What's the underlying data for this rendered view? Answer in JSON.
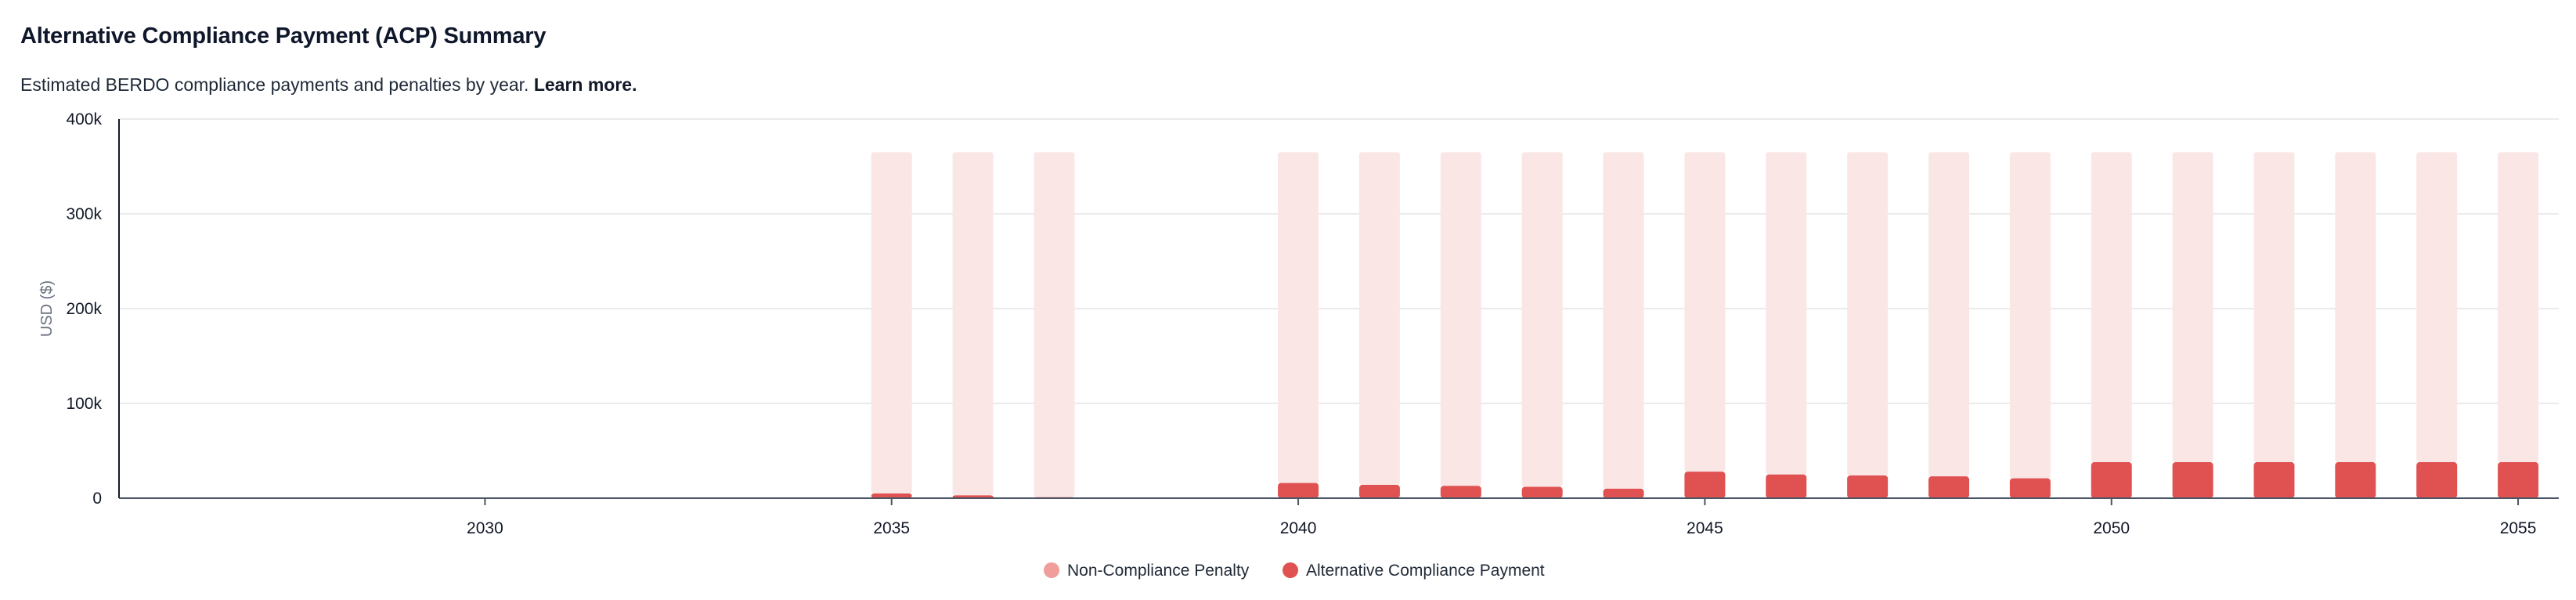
{
  "header": {
    "title": "Alternative Compliance Payment (ACP) Summary",
    "subtitle": "Estimated BERDO compliance payments and penalties by year.",
    "link_label": "Learn more."
  },
  "colors": {
    "penalty": "#fbe6e6",
    "penalty_legend": "#ef9e9c",
    "acp": "#e05252",
    "grid": "#ebebeb",
    "axis": "#111827"
  },
  "chart_data": {
    "type": "bar",
    "stacked": true,
    "title": "Alternative Compliance Payment (ACP) Summary",
    "ylabel": "USD ($)",
    "xlabel": "",
    "ylim": [
      0,
      400000
    ],
    "xlim": [
      2025.5,
      2055.5
    ],
    "y_ticks": [
      0,
      100000,
      200000,
      300000,
      400000
    ],
    "y_tick_labels": [
      "0",
      "100k",
      "200k",
      "300k",
      "400k"
    ],
    "x_ticks": [
      2030,
      2035,
      2040,
      2045,
      2050,
      2055
    ],
    "x_tick_labels": [
      "2030",
      "2035",
      "2040",
      "2045",
      "2050",
      "2055"
    ],
    "grid": true,
    "legend_position": "bottom",
    "categories": [
      2026,
      2027,
      2028,
      2029,
      2030,
      2031,
      2032,
      2033,
      2034,
      2035,
      2036,
      2037,
      2038,
      2039,
      2040,
      2041,
      2042,
      2043,
      2044,
      2045,
      2046,
      2047,
      2048,
      2049,
      2050,
      2051,
      2052,
      2053,
      2054,
      2055
    ],
    "series": [
      {
        "name": "Alternative Compliance Payment",
        "values": [
          0,
          0,
          0,
          0,
          0,
          0,
          0,
          0,
          0,
          5000,
          3000,
          1000,
          0,
          0,
          16000,
          14000,
          13000,
          12000,
          10000,
          28000,
          25000,
          24000,
          23000,
          21000,
          38000,
          38000,
          38000,
          38000,
          38000,
          38000
        ]
      },
      {
        "name": "Non-Compliance Penalty",
        "values": [
          0,
          0,
          0,
          0,
          0,
          0,
          0,
          0,
          0,
          360000,
          362000,
          364000,
          0,
          0,
          349000,
          351000,
          352000,
          353000,
          355000,
          337000,
          340000,
          341000,
          342000,
          344000,
          327000,
          327000,
          327000,
          327000,
          327000,
          327000
        ]
      }
    ]
  }
}
